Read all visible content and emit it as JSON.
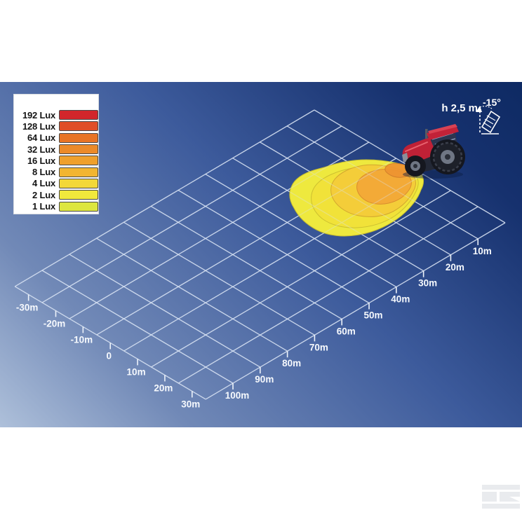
{
  "legend": {
    "items": [
      {
        "label": "192 Lux",
        "color": "#d2262b"
      },
      {
        "label": "128 Lux",
        "color": "#e04e27"
      },
      {
        "label": "64 Lux",
        "color": "#e87425"
      },
      {
        "label": "32 Lux",
        "color": "#ec8a28"
      },
      {
        "label": "16 Lux",
        "color": "#efa02c"
      },
      {
        "label": "8 Lux",
        "color": "#f2b531"
      },
      {
        "label": "4 Lux",
        "color": "#f3d838"
      },
      {
        "label": "2 Lux",
        "color": "#f1e83c"
      },
      {
        "label": "1 Lux",
        "color": "#dde63f"
      }
    ]
  },
  "annotation": {
    "height_label": "h 2,5 m",
    "angle_label": "-15°"
  },
  "chart_data": {
    "type": "heatmap",
    "subtype": "illuminance-contour-on-perspective-grid",
    "title": "",
    "legend_title": "",
    "distance_axis": {
      "unit": "m",
      "range_m": [
        0,
        110
      ],
      "cell_m": 10
    },
    "lateral_axis": {
      "unit": "m",
      "range_m": [
        -35,
        35
      ],
      "cell_m": 10
    },
    "distance_ticks": [
      {
        "v": 10,
        "label": "10m"
      },
      {
        "v": 20,
        "label": "20m"
      },
      {
        "v": 30,
        "label": "30m"
      },
      {
        "v": 40,
        "label": "40m"
      },
      {
        "v": 50,
        "label": "50m"
      },
      {
        "v": 60,
        "label": "60m"
      },
      {
        "v": 70,
        "label": "70m"
      },
      {
        "v": 80,
        "label": "80m"
      },
      {
        "v": 90,
        "label": "90m"
      },
      {
        "v": 100,
        "label": "100m"
      }
    ],
    "lateral_ticks": [
      {
        "v": -30,
        "label": "-30m"
      },
      {
        "v": -20,
        "label": "-20m"
      },
      {
        "v": -10,
        "label": "-10m"
      },
      {
        "v": 0,
        "label": "0"
      },
      {
        "v": 10,
        "label": "10m"
      },
      {
        "v": 20,
        "label": "20m"
      },
      {
        "v": 30,
        "label": "30m"
      }
    ],
    "mounting": {
      "height_label": "h 2,5 m",
      "tilt_label": "-15°"
    },
    "contours": [
      {
        "lux": 1,
        "color": "#eee93e",
        "extent_m": {
          "distance": [
            5,
            38
          ],
          "lateral": [
            -13,
            13
          ]
        }
      },
      {
        "lux": 4,
        "color": "#f1e239",
        "extent_m": {
          "distance": [
            6,
            33
          ],
          "lateral": [
            -10,
            10
          ]
        }
      },
      {
        "lux": 16,
        "color": "#f4cd39",
        "extent_m": {
          "distance": [
            7,
            27
          ],
          "lateral": [
            -8,
            8
          ]
        }
      },
      {
        "lux": 32,
        "color": "#f3aa37",
        "extent_m": {
          "distance": [
            8,
            20
          ],
          "lateral": [
            -4,
            7
          ]
        }
      },
      {
        "lux": 64,
        "color": "#ee9431",
        "extent_m": {
          "distance": [
            9,
            15
          ],
          "lateral": [
            0,
            6
          ]
        }
      }
    ]
  }
}
